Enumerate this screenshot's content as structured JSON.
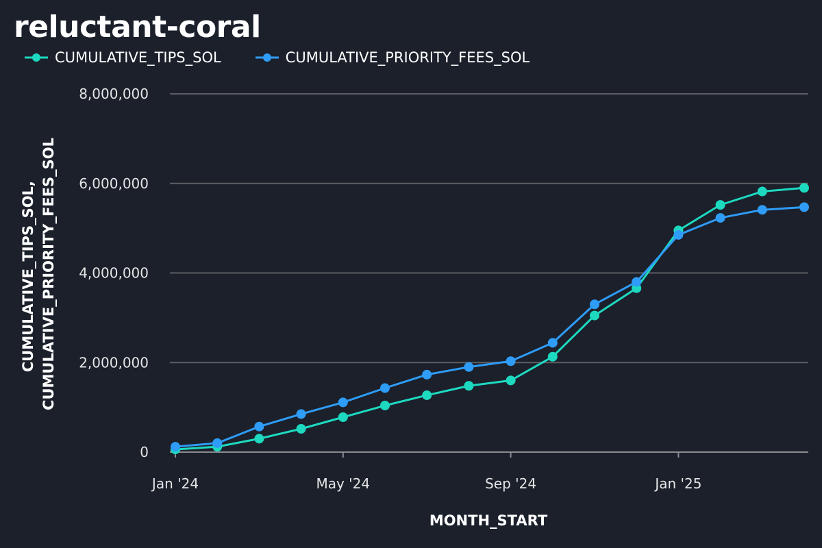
{
  "chart_data": {
    "type": "line",
    "title": "reluctant-coral",
    "xlabel": "MONTH_START",
    "ylabel_lines": [
      "CUMULATIVE_TIPS_SOL,",
      "CUMULATIVE_PRIORITY_FEES_SOL"
    ],
    "x": [
      "2024-01",
      "2024-02",
      "2024-03",
      "2024-04",
      "2024-05",
      "2024-06",
      "2024-07",
      "2024-08",
      "2024-09",
      "2024-10",
      "2024-11",
      "2024-12",
      "2025-01",
      "2025-02",
      "2025-03",
      "2025-04"
    ],
    "x_ticks": [
      {
        "x": "2024-01",
        "label": "Jan '24"
      },
      {
        "x": "2024-05",
        "label": "May '24"
      },
      {
        "x": "2024-09",
        "label": "Sep '24"
      },
      {
        "x": "2025-01",
        "label": "Jan '25"
      }
    ],
    "ylim": [
      0,
      8000000
    ],
    "y_ticks": [
      {
        "value": 0,
        "label": "0"
      },
      {
        "value": 2000000,
        "label": "2,000,000"
      },
      {
        "value": 4000000,
        "label": "4,000,000"
      },
      {
        "value": 6000000,
        "label": "6,000,000"
      },
      {
        "value": 8000000,
        "label": "8,000,000"
      }
    ],
    "grid": true,
    "legend_position": "top-left",
    "series": [
      {
        "name": "CUMULATIVE_TIPS_SOL",
        "color": "#1dd9c0",
        "values": [
          60000,
          120000,
          300000,
          520000,
          780000,
          1040000,
          1270000,
          1480000,
          1600000,
          2130000,
          3050000,
          3660000,
          4950000,
          5520000,
          5820000,
          5900000
        ]
      },
      {
        "name": "CUMULATIVE_PRIORITY_FEES_SOL",
        "color": "#2f9cf7",
        "values": [
          120000,
          200000,
          570000,
          850000,
          1110000,
          1430000,
          1730000,
          1900000,
          2030000,
          2440000,
          3300000,
          3800000,
          4850000,
          5230000,
          5410000,
          5470000
        ]
      }
    ]
  },
  "colors": {
    "background": "#1b202b",
    "grid": "#5c5e63",
    "axis": "#8a8c91"
  }
}
